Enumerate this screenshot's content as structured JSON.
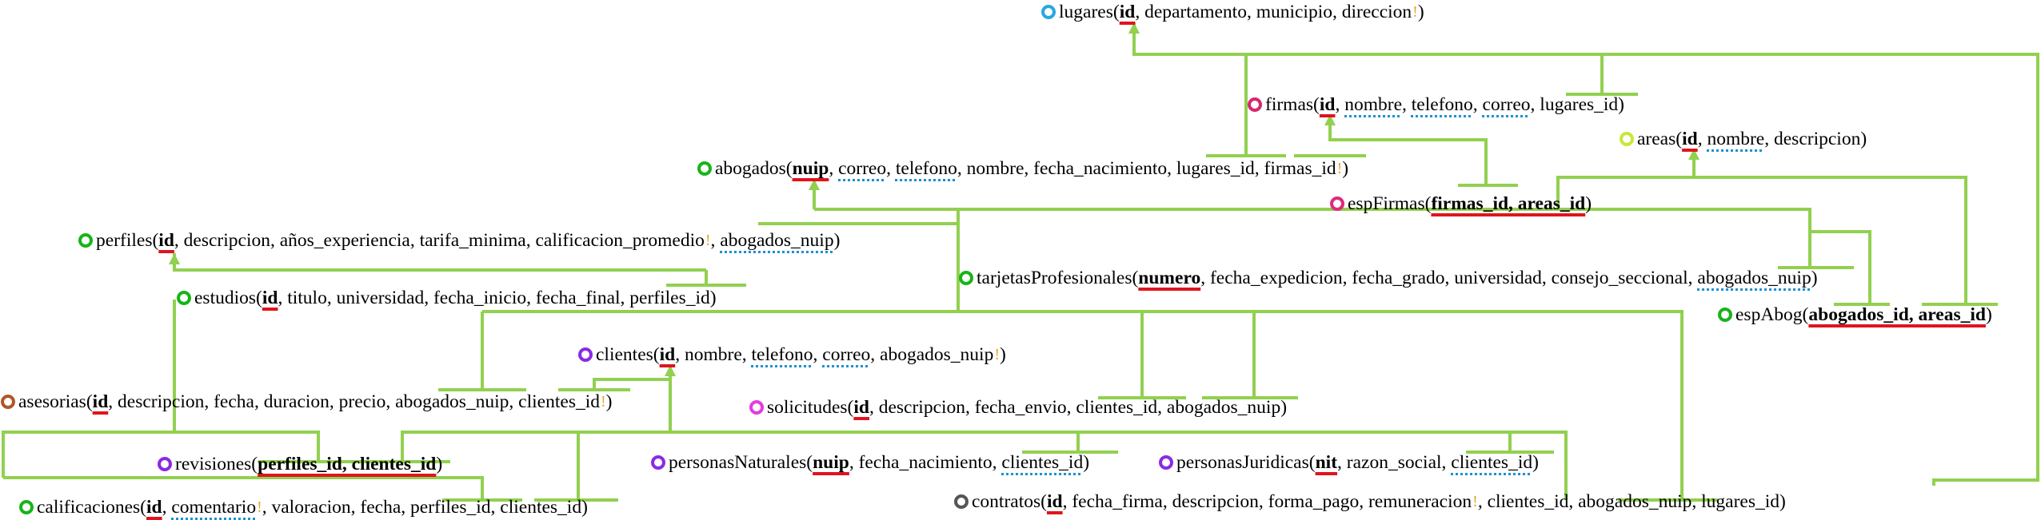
{
  "colors": {
    "connector": "#92d050",
    "pk_underline": "#e0141e",
    "fk_underline": "#1e90d0",
    "nullable_mark": "#e7a52a"
  },
  "tables": {
    "lugares": {
      "dot": "#29a8e0",
      "name": "lugares",
      "open": "(",
      "fields": [
        {
          "t": "id",
          "k": "pk"
        },
        {
          "t": ", departamento, municipio, direccion"
        },
        {
          "t": "!",
          "k": "bang"
        },
        {
          "t": ")"
        }
      ]
    },
    "firmas": {
      "dot": "#d6286e",
      "name": "firmas",
      "open": "(",
      "fields": [
        {
          "t": "id",
          "k": "pk"
        },
        {
          "t": ", "
        },
        {
          "t": "nombre",
          "k": "fk"
        },
        {
          "t": ", "
        },
        {
          "t": "telefono",
          "k": "fk"
        },
        {
          "t": ", "
        },
        {
          "t": "correo",
          "k": "fk"
        },
        {
          "t": ", lugares_id)"
        }
      ]
    },
    "areas": {
      "dot": "#c7e83a",
      "name": "areas",
      "open": "(",
      "fields": [
        {
          "t": "id",
          "k": "pk"
        },
        {
          "t": ", "
        },
        {
          "t": "nombre",
          "k": "fk"
        },
        {
          "t": ", descripcion)"
        }
      ]
    },
    "abogados": {
      "dot": "#18b418",
      "name": "abogados",
      "open": "(",
      "fields": [
        {
          "t": "nuip",
          "k": "pk"
        },
        {
          "t": ", "
        },
        {
          "t": "correo",
          "k": "fk"
        },
        {
          "t": ", "
        },
        {
          "t": "telefono",
          "k": "fk"
        },
        {
          "t": ", nombre, fecha_nacimiento, lugares_id, firmas_id"
        },
        {
          "t": "!",
          "k": "bang"
        },
        {
          "t": ")"
        }
      ]
    },
    "espFirmas": {
      "dot": "#e0287c",
      "name": "espFirmas",
      "open": "(",
      "fields": [
        {
          "t": "firmas_id, areas_id",
          "k": "pk"
        },
        {
          "t": ")"
        }
      ]
    },
    "perfiles": {
      "dot": "#18b418",
      "name": "perfiles",
      "open": "(",
      "fields": [
        {
          "t": "id",
          "k": "pk"
        },
        {
          "t": ", descripcion, años_experiencia, tarifa_minima, calificacion_promedio"
        },
        {
          "t": "!",
          "k": "bang"
        },
        {
          "t": ", "
        },
        {
          "t": "abogados_nuip",
          "k": "fk"
        },
        {
          "t": ")"
        }
      ]
    },
    "estudios": {
      "dot": "#18b418",
      "name": "estudios",
      "open": "(",
      "fields": [
        {
          "t": "id",
          "k": "pk"
        },
        {
          "t": ", titulo, universidad, fecha_inicio, fecha_final, perfiles_id)"
        }
      ]
    },
    "tarjetas": {
      "dot": "#18b418",
      "name": "tarjetasProfesionales",
      "open": "(",
      "fields": [
        {
          "t": "numero",
          "k": "pk"
        },
        {
          "t": ", fecha_expedicion, fecha_grado, universidad, consejo_seccional, "
        },
        {
          "t": "abogados_nuip",
          "k": "fk"
        },
        {
          "t": ")"
        }
      ]
    },
    "espAbog": {
      "dot": "#18b418",
      "name": "espAbog",
      "open": "(",
      "fields": [
        {
          "t": "abogados_id, areas_id",
          "k": "pk"
        },
        {
          "t": ")"
        }
      ]
    },
    "clientes": {
      "dot": "#8a2be2",
      "name": "clientes",
      "open": "(",
      "fields": [
        {
          "t": "id",
          "k": "pk"
        },
        {
          "t": ", nombre, "
        },
        {
          "t": "telefono",
          "k": "fk"
        },
        {
          "t": ", "
        },
        {
          "t": "correo",
          "k": "fk"
        },
        {
          "t": ", abogados_nuip"
        },
        {
          "t": "!",
          "k": "bang"
        },
        {
          "t": ")"
        }
      ]
    },
    "asesorias": {
      "dot": "#b0562a",
      "name": "asesorias",
      "open": "(",
      "fields": [
        {
          "t": "id",
          "k": "pk"
        },
        {
          "t": ", descripcion, fecha, duracion, precio, abogados_nuip, clientes_id"
        },
        {
          "t": "!",
          "k": "bang"
        },
        {
          "t": ")"
        }
      ]
    },
    "solicitudes": {
      "dot": "#e23ce2",
      "name": "solicitudes",
      "open": "(",
      "fields": [
        {
          "t": "id",
          "k": "pk"
        },
        {
          "t": ", descripcion, fecha_envio, clientes_id, abogados_nuip)"
        }
      ]
    },
    "revisiones": {
      "dot": "#8a2be2",
      "name": "revisiones",
      "open": "(",
      "fields": [
        {
          "t": "perfiles_id, clientes_id",
          "k": "pk"
        },
        {
          "t": ")"
        }
      ]
    },
    "personasNaturales": {
      "dot": "#8a2be2",
      "name": "personasNaturales",
      "open": "(",
      "fields": [
        {
          "t": "nuip",
          "k": "pk"
        },
        {
          "t": ", fecha_nacimiento, "
        },
        {
          "t": "clientes_id",
          "k": "fk"
        },
        {
          "t": ")"
        }
      ]
    },
    "personasJuridicas": {
      "dot": "#8a2be2",
      "name": "personasJuridicas",
      "open": "(",
      "fields": [
        {
          "t": "nit",
          "k": "pk"
        },
        {
          "t": ", razon_social, "
        },
        {
          "t": "clientes_id",
          "k": "fk"
        },
        {
          "t": ")"
        }
      ]
    },
    "calificaciones": {
      "dot": "#18b418",
      "name": "calificaciones",
      "open": "(",
      "fields": [
        {
          "t": "id",
          "k": "pk"
        },
        {
          "t": ", "
        },
        {
          "t": "comentario",
          "k": "fk"
        },
        {
          "t": "!",
          "k": "bang"
        },
        {
          "t": ", valoracion, fecha, perfiles_id, clientes_id)"
        }
      ]
    },
    "contratos": {
      "dot": "#555555",
      "name": "contratos",
      "open": "(",
      "fields": [
        {
          "t": "id",
          "k": "pk"
        },
        {
          "t": ", fecha_firma, descripcion, forma_pago, remuneracion"
        },
        {
          "t": "!",
          "k": "bang"
        },
        {
          "t": ", clientes_id, abogados_nuip, lugares_id)"
        }
      ]
    }
  }
}
